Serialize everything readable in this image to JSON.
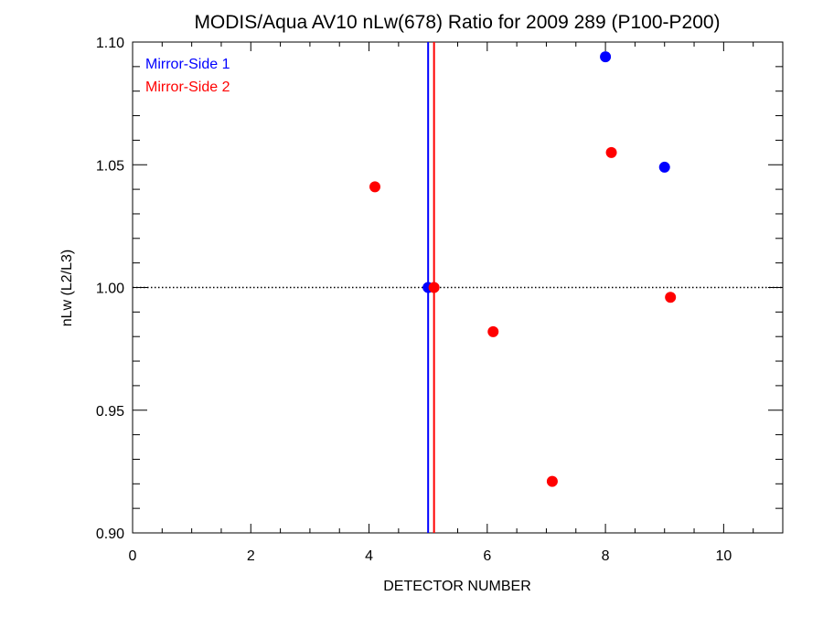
{
  "chart_data": {
    "type": "scatter",
    "title": "MODIS/Aqua AV10 nLw(678) Ratio for 2009 289 (P100-P200)",
    "xlabel": "DETECTOR NUMBER",
    "ylabel": "nLw (L2/L3)",
    "xlim": [
      0,
      11
    ],
    "ylim": [
      0.9,
      1.1
    ],
    "x_ticks": [
      "0",
      "2",
      "4",
      "6",
      "8",
      "10"
    ],
    "y_ticks": [
      "0.90",
      "0.95",
      "1.00",
      "1.05",
      "1.10"
    ],
    "reference_line": {
      "y": 1.0,
      "style": "dotted"
    },
    "legend_position": "top-left",
    "series": [
      {
        "name": "Mirror-Side 1",
        "color": "#0000ff",
        "x": [
          5,
          8,
          9
        ],
        "y": [
          1.0,
          1.094,
          1.049
        ],
        "vline_x": 5.0
      },
      {
        "name": "Mirror-Side 2",
        "color": "#ff0000",
        "x": [
          4.1,
          5.1,
          6.1,
          7.1,
          8.1,
          9.1
        ],
        "y": [
          1.041,
          1.0,
          0.982,
          0.921,
          1.055,
          0.996
        ],
        "vline_x": 5.1
      }
    ]
  }
}
